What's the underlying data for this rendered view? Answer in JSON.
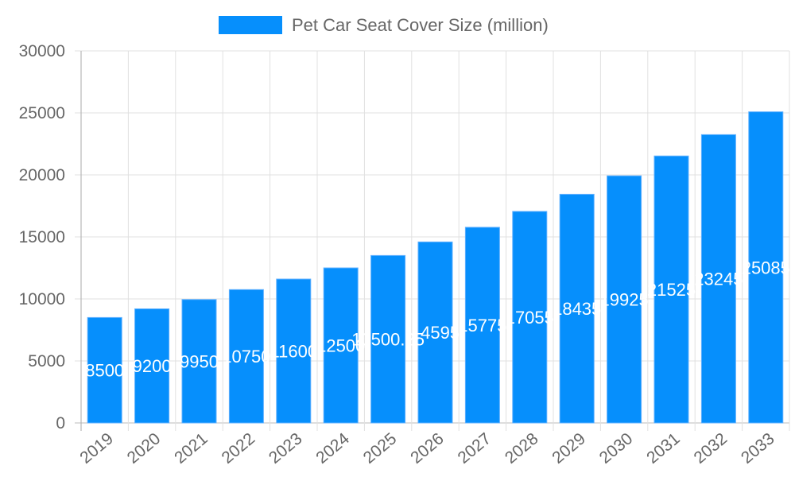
{
  "chart_data": {
    "type": "bar",
    "title": "",
    "xlabel": "",
    "ylabel": "",
    "legend": {
      "position": "top",
      "entries": [
        "Pet Car Seat Cover Size (million)"
      ]
    },
    "grid": true,
    "ylim": [
      0,
      30000
    ],
    "yticks": [
      0,
      5000,
      10000,
      15000,
      20000,
      25000,
      30000
    ],
    "categories": [
      "2019",
      "2020",
      "2021",
      "2022",
      "2023",
      "2024",
      "2025",
      "2026",
      "2027",
      "2028",
      "2029",
      "2030",
      "2031",
      "2032",
      "2033"
    ],
    "series": [
      {
        "name": "Pet Car Seat Cover Size (million)",
        "color": "#068ffc",
        "values": [
          8500,
          9200,
          9950,
          10750,
          11600,
          12500,
          13500.25,
          14595,
          15775,
          17055,
          18435,
          19925,
          21525,
          23245,
          25085
        ]
      }
    ]
  }
}
